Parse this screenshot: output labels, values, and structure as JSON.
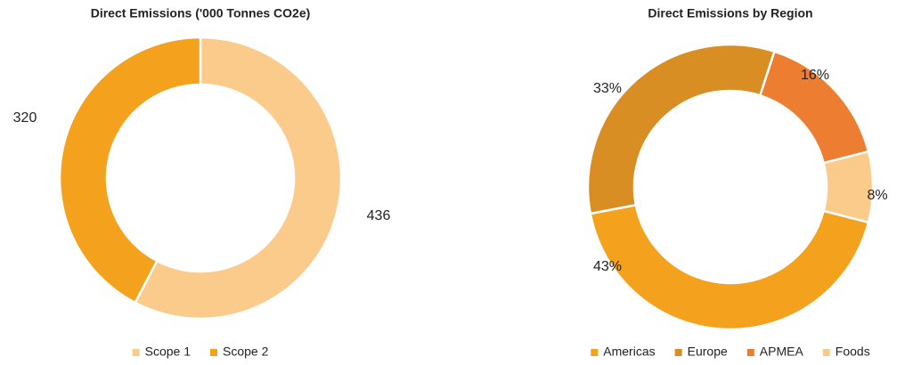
{
  "chart_data": [
    {
      "type": "donut",
      "title": "Direct Emissions ('000 Tonnes CO2e)",
      "categories": [
        "Scope 1",
        "Scope 2"
      ],
      "values": [
        436,
        320
      ],
      "colors": [
        "#fbcb8c",
        "#f4a11e"
      ]
    },
    {
      "type": "donut",
      "title": "Direct Emissions by Region",
      "categories": [
        "Americas",
        "Europe",
        "APMEA",
        "Foods"
      ],
      "values": [
        43,
        33,
        16,
        8
      ],
      "value_labels": [
        "43%",
        "33%",
        "16%",
        "8%"
      ],
      "colors": [
        "#f4a11e",
        "#d98e23",
        "#ed7d31",
        "#fbcb8c"
      ]
    }
  ]
}
